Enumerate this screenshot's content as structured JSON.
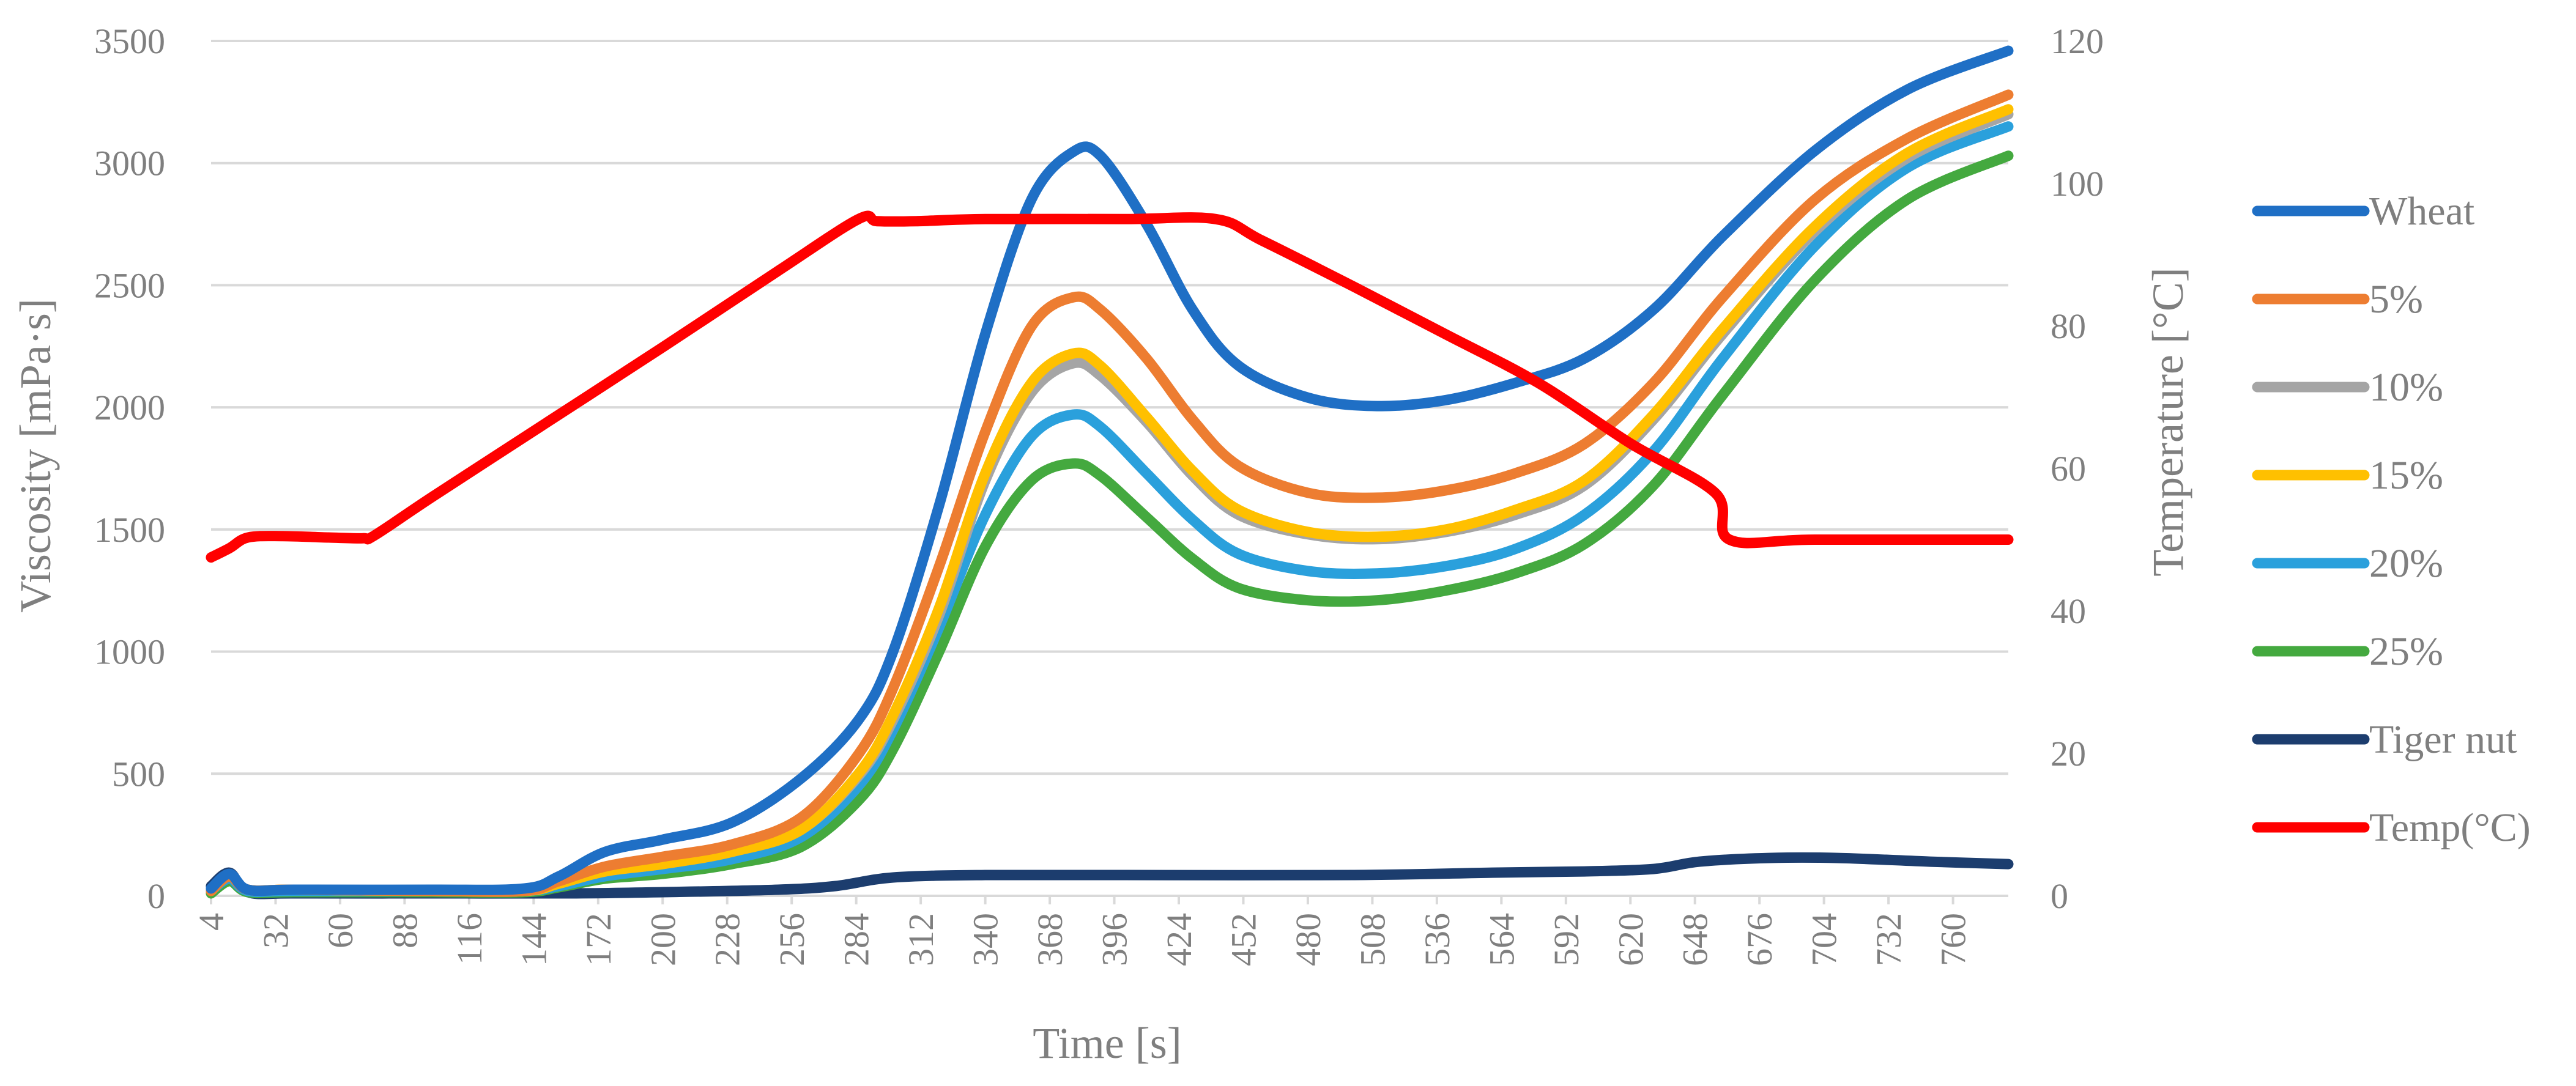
{
  "chart_data": {
    "type": "line",
    "title": "",
    "xlabel": "Time [s]",
    "ylabel": "Viscosity [mPa·s]",
    "y2label": "Temperature [°C]",
    "xlim": [
      4,
      784
    ],
    "ylim": [
      0,
      3500
    ],
    "y2lim": [
      0,
      120
    ],
    "x_ticks": [
      4,
      32,
      60,
      88,
      116,
      144,
      172,
      200,
      228,
      256,
      284,
      312,
      340,
      368,
      396,
      424,
      452,
      480,
      508,
      536,
      564,
      592,
      620,
      648,
      676,
      704,
      732,
      760
    ],
    "y_ticks": [
      0,
      500,
      1000,
      1500,
      2000,
      2500,
      3000,
      3500
    ],
    "y2_ticks": [
      0,
      20,
      40,
      60,
      80,
      100,
      120
    ],
    "grid": true,
    "legend_position": "right",
    "series": [
      {
        "name": "Wheat",
        "axis": "left",
        "color": "#1f6fc5",
        "x": [
          4,
          12,
          20,
          40,
          100,
          140,
          155,
          175,
          200,
          230,
          260,
          285,
          300,
          320,
          340,
          360,
          378,
          390,
          410,
          430,
          450,
          480,
          510,
          540,
          570,
          600,
          630,
          660,
          700,
          740,
          784
        ],
        "y": [
          30,
          90,
          25,
          25,
          25,
          30,
          80,
          180,
          230,
          300,
          480,
          720,
          1000,
          1600,
          2300,
          2850,
          3045,
          3030,
          2750,
          2400,
          2170,
          2040,
          2005,
          2030,
          2100,
          2200,
          2400,
          2700,
          3050,
          3300,
          3460
        ]
      },
      {
        "name": "5%",
        "axis": "left",
        "color": "#ed7d31",
        "x": [
          4,
          12,
          20,
          40,
          100,
          140,
          155,
          175,
          200,
          230,
          260,
          285,
          300,
          320,
          340,
          360,
          378,
          390,
          410,
          430,
          450,
          480,
          510,
          540,
          570,
          600,
          630,
          660,
          700,
          740,
          784
        ],
        "y": [
          20,
          80,
          25,
          25,
          20,
          20,
          60,
          120,
          160,
          210,
          320,
          580,
          850,
          1350,
          1900,
          2330,
          2450,
          2400,
          2200,
          1950,
          1760,
          1650,
          1630,
          1660,
          1730,
          1850,
          2100,
          2450,
          2850,
          3100,
          3280
        ]
      },
      {
        "name": "10%",
        "axis": "left",
        "color": "#a5a5a5",
        "x": [
          4,
          12,
          20,
          40,
          100,
          140,
          155,
          175,
          200,
          230,
          260,
          285,
          300,
          320,
          340,
          360,
          378,
          390,
          410,
          430,
          450,
          480,
          510,
          540,
          570,
          600,
          630,
          660,
          700,
          740,
          784
        ],
        "y": [
          20,
          80,
          25,
          25,
          20,
          20,
          50,
          100,
          130,
          180,
          270,
          490,
          720,
          1150,
          1700,
          2060,
          2180,
          2130,
          1940,
          1720,
          1560,
          1480,
          1460,
          1490,
          1560,
          1680,
          1950,
          2300,
          2720,
          3020,
          3200
        ]
      },
      {
        "name": "15%",
        "axis": "left",
        "color": "#ffc000",
        "x": [
          4,
          12,
          20,
          40,
          100,
          140,
          155,
          175,
          200,
          230,
          260,
          285,
          300,
          320,
          340,
          360,
          378,
          390,
          410,
          430,
          450,
          480,
          510,
          540,
          570,
          600,
          630,
          660,
          700,
          740,
          784
        ],
        "y": [
          20,
          80,
          25,
          25,
          20,
          20,
          50,
          100,
          130,
          180,
          270,
          500,
          740,
          1180,
          1730,
          2100,
          2220,
          2170,
          1960,
          1740,
          1580,
          1490,
          1470,
          1500,
          1580,
          1700,
          1970,
          2320,
          2740,
          3040,
          3220
        ]
      },
      {
        "name": "20%",
        "axis": "left",
        "color": "#2aa0dc",
        "x": [
          4,
          12,
          20,
          40,
          100,
          140,
          155,
          175,
          200,
          230,
          260,
          285,
          300,
          320,
          340,
          360,
          378,
          390,
          410,
          430,
          450,
          480,
          510,
          540,
          570,
          600,
          630,
          660,
          700,
          740,
          784
        ],
        "y": [
          20,
          70,
          20,
          20,
          20,
          20,
          40,
          80,
          110,
          150,
          240,
          450,
          680,
          1100,
          1560,
          1880,
          1970,
          1920,
          1730,
          1540,
          1400,
          1330,
          1320,
          1350,
          1420,
          1560,
          1820,
          2200,
          2660,
          2980,
          3150
        ]
      },
      {
        "name": "25%",
        "axis": "left",
        "color": "#44a93f",
        "x": [
          4,
          12,
          20,
          40,
          100,
          140,
          155,
          175,
          200,
          230,
          260,
          285,
          300,
          320,
          340,
          360,
          378,
          390,
          410,
          430,
          450,
          480,
          510,
          540,
          570,
          600,
          630,
          660,
          700,
          740,
          784
        ],
        "y": [
          10,
          60,
          15,
          15,
          15,
          15,
          35,
          70,
          90,
          130,
          200,
          390,
          600,
          1000,
          1430,
          1700,
          1770,
          1720,
          1550,
          1380,
          1260,
          1210,
          1210,
          1250,
          1320,
          1440,
          1680,
          2050,
          2520,
          2850,
          3030
        ]
      },
      {
        "name": "Tiger nut",
        "axis": "left",
        "color": "#1c3d6e",
        "x": [
          4,
          12,
          20,
          40,
          100,
          160,
          200,
          250,
          275,
          300,
          340,
          400,
          500,
          560,
          600,
          630,
          650,
          680,
          710,
          750,
          784
        ],
        "y": [
          40,
          95,
          15,
          10,
          10,
          10,
          15,
          25,
          40,
          75,
          85,
          85,
          85,
          95,
          100,
          110,
          140,
          155,
          155,
          140,
          130
        ]
      },
      {
        "name": "Temp(°C)",
        "axis": "right",
        "color": "#ff0000",
        "x": [
          4,
          12,
          20,
          35,
          55,
          70,
          75,
          100,
          150,
          200,
          250,
          285,
          293,
          310,
          340,
          400,
          440,
          460,
          500,
          540,
          580,
          620,
          657,
          663,
          700,
          784
        ],
        "y": [
          47.5,
          48.8,
          50.3,
          50.5,
          50.3,
          50.2,
          50.6,
          56,
          66.5,
          77,
          87.7,
          95,
          94.7,
          94.7,
          95,
          95,
          95,
          92,
          85.5,
          78.8,
          72,
          63.5,
          56.5,
          50,
          50,
          50
        ]
      }
    ]
  }
}
